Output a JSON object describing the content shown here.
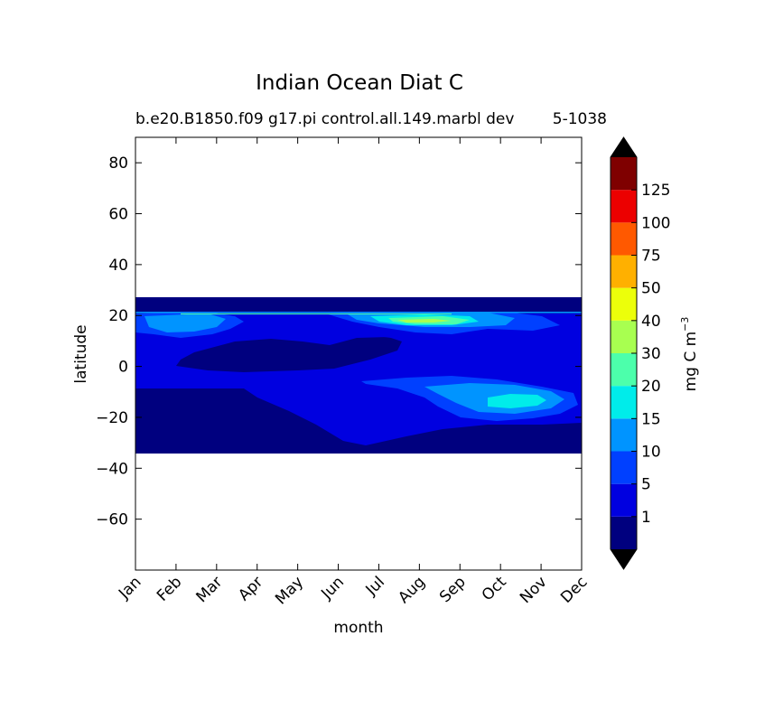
{
  "chart_data": {
    "type": "heatmap",
    "title": "Indian Ocean Diat C",
    "subtitle_left": "b.e20.B1850.f09 g17.pi control.all.149.marbl dev",
    "subtitle_right": "5-1038",
    "xlabel": "month",
    "ylabel": "latitude",
    "x_categories": [
      "Jan",
      "Feb",
      "Mar",
      "Apr",
      "May",
      "Jun",
      "Jul",
      "Aug",
      "Sep",
      "Oct",
      "Nov",
      "Dec"
    ],
    "ylim": [
      -80,
      90
    ],
    "y_ticks": [
      80,
      60,
      40,
      20,
      0,
      -20,
      -40,
      -60
    ],
    "data_extent_lat": [
      -34,
      27
    ],
    "colorbar": {
      "label": "mg C m",
      "label_exponent": "−3",
      "ticks": [
        "1",
        "5",
        "10",
        "15",
        "20",
        "30",
        "40",
        "50",
        "75",
        "100",
        "125"
      ],
      "levels": [
        1,
        5,
        10,
        15,
        20,
        30,
        40,
        50,
        75,
        100,
        125
      ],
      "extend": "both",
      "colors": [
        "#00007f",
        "#0000e0",
        "#0040ff",
        "#0094ff",
        "#00ecea",
        "#4cffab",
        "#a8ff50",
        "#ecff0a",
        "#ffb000",
        "#ff5900",
        "#ec0000",
        "#7f0000"
      ],
      "under_color": "#000000",
      "over_color": "#000000"
    },
    "features": [
      {
        "band": 0,
        "lat": [
          -34,
          27
        ],
        "month": [
          0,
          11
        ],
        "note": "background level < 1"
      },
      {
        "band": 1,
        "lat": [
          -26,
          22
        ],
        "note": "level 1-5 across most of the basin"
      },
      {
        "band": 2,
        "lat": [
          -22,
          21
        ],
        "note": "level 5-10 patches"
      },
      {
        "band": 3,
        "lat": [
          -18,
          21
        ],
        "note": "level 10-15 patches"
      },
      {
        "band": 4,
        "lat": [
          -16,
          -11
        ],
        "month": [
          8.9,
          9.8
        ],
        "note": "level 15-20 maximum near Sep-Oct"
      },
      {
        "band": 5,
        "lat": [
          16,
          20
        ],
        "month": [
          6.6,
          8.3
        ],
        "note": "level 20-30 near Jul-Sep"
      }
    ]
  }
}
